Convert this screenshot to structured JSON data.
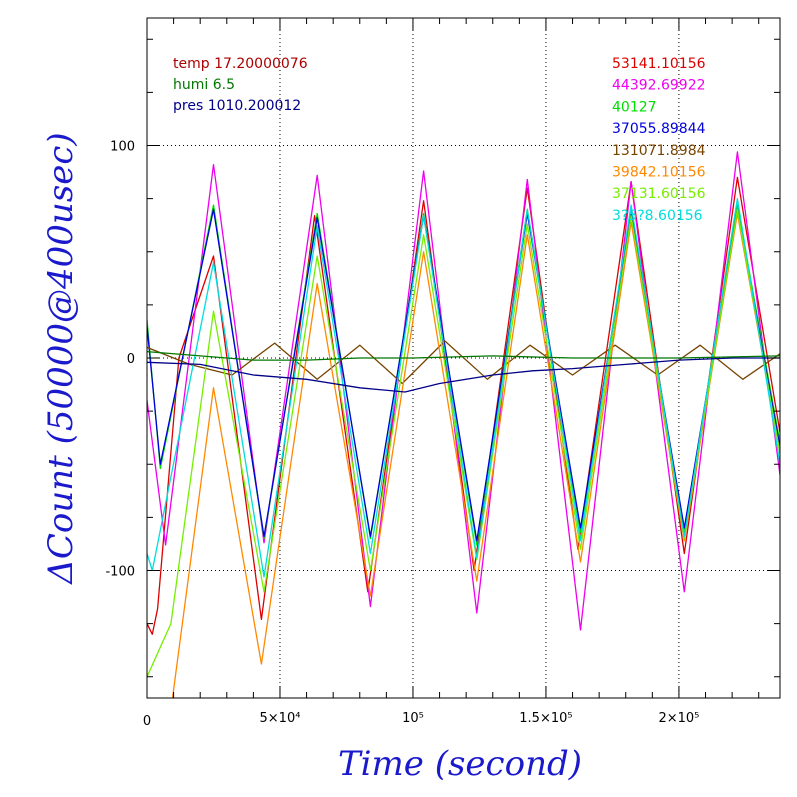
{
  "chart_data": {
    "type": "line",
    "xlabel": "Time (second)",
    "ylabel": "ΔCount (50000@400usec)",
    "xlim": [
      0,
      238000
    ],
    "ylim": [
      -160,
      160
    ],
    "x_ticks": [
      {
        "value": 0,
        "label": "0"
      },
      {
        "value": 50000,
        "label": "5×10⁴"
      },
      {
        "value": 100000,
        "label": "10⁵"
      },
      {
        "value": 150000,
        "label": "1.5×10⁵"
      },
      {
        "value": 200000,
        "label": "2×10⁵"
      }
    ],
    "y_ticks": [
      {
        "value": 100,
        "label": "100"
      },
      {
        "value": 0,
        "label": "0"
      },
      {
        "value": -100,
        "label": "-100"
      }
    ],
    "grid": true,
    "environment": [
      {
        "label": "temp 17.20000076",
        "color": "#aa0000"
      },
      {
        "label": "humi 6.5",
        "color": "#007700"
      },
      {
        "label": "pres 1010.200012",
        "color": "#000088"
      }
    ],
    "series": [
      {
        "name": "53141.10156",
        "color": "#dd0000",
        "x": [
          0,
          2000,
          4000,
          12000,
          25000,
          43000,
          63000,
          83000,
          104000,
          123000,
          143000,
          162000,
          182000,
          202000,
          222000,
          238000
        ],
        "y": [
          -125,
          -130,
          -118,
          0,
          48,
          -123,
          67,
          -110,
          74,
          -100,
          80,
          -90,
          83,
          -92,
          85,
          -35
        ]
      },
      {
        "name": "44392.69922",
        "color": "#ee00ee",
        "x": [
          0,
          7000,
          25000,
          44000,
          64000,
          84000,
          104000,
          124000,
          143000,
          163000,
          182000,
          202000,
          222000,
          238000
        ],
        "y": [
          -20,
          -88,
          91,
          -87,
          86,
          -117,
          88,
          -120,
          84,
          -128,
          83,
          -110,
          97,
          -55
        ]
      },
      {
        "name": "40127",
        "color": "#00dd00",
        "x": [
          0,
          5000,
          25000,
          44000,
          64000,
          84000,
          104000,
          124000,
          143000,
          163000,
          182000,
          202000,
          222000,
          238000
        ],
        "y": [
          18,
          -52,
          72,
          -85,
          68,
          -85,
          68,
          -88,
          70,
          -82,
          70,
          -82,
          72,
          -40
        ]
      },
      {
        "name": "37055.89844",
        "color": "#0000dd",
        "x": [
          0,
          5000,
          25000,
          44000,
          64000,
          84000,
          104000,
          124000,
          143000,
          163000,
          182000,
          202000,
          222000,
          238000
        ],
        "y": [
          15,
          -50,
          70,
          -84,
          66,
          -84,
          67,
          -86,
          68,
          -80,
          68,
          -80,
          70,
          -42
        ]
      },
      {
        "name": "131071.8984",
        "color": "#774400",
        "x": [
          0,
          16000,
          32000,
          48000,
          64000,
          80000,
          96000,
          112000,
          128000,
          144000,
          160000,
          176000,
          192000,
          208000,
          224000,
          238000
        ],
        "y": [
          5,
          -3,
          -8,
          7,
          -10,
          6,
          -12,
          8,
          -10,
          6,
          -8,
          6,
          -8,
          6,
          -10,
          2
        ]
      },
      {
        "name": "39842.10156",
        "color": "#ff8800",
        "x": [
          0,
          8000,
          25000,
          43000,
          64000,
          84000,
          104000,
          124000,
          143000,
          163000,
          182000,
          202000,
          222000,
          238000
        ],
        "y": [
          -200,
          -175,
          -14,
          -144,
          35,
          -112,
          50,
          -105,
          58,
          -96,
          64,
          -86,
          68,
          -45
        ]
      },
      {
        "name": "37131.60156",
        "color": "#77ee00",
        "x": [
          0,
          9000,
          25000,
          44000,
          64000,
          84000,
          104000,
          124000,
          143000,
          163000,
          182000,
          202000,
          222000,
          238000
        ],
        "y": [
          -150,
          -125,
          22,
          -110,
          48,
          -100,
          58,
          -95,
          63,
          -90,
          67,
          -85,
          70,
          -45
        ]
      },
      {
        "name": "3?5?8.60156",
        "color": "#00dddd",
        "x": [
          0,
          2000,
          25000,
          44000,
          64000,
          84000,
          104000,
          124000,
          143000,
          163000,
          182000,
          202000,
          222000,
          238000
        ],
        "y": [
          -92,
          -100,
          45,
          -103,
          62,
          -92,
          67,
          -94,
          70,
          -86,
          72,
          -84,
          75,
          -50
        ]
      },
      {
        "name": "",
        "color": "#000088",
        "x": [
          0,
          20000,
          40000,
          60000,
          80000,
          97000,
          110000,
          130000,
          145000,
          160000,
          180000,
          200000,
          220000,
          238000
        ],
        "y": [
          -2,
          -3,
          -8,
          -10,
          -14,
          -16,
          -12,
          -8,
          -6,
          -5,
          -3,
          -1,
          0,
          0
        ]
      },
      {
        "name": "",
        "color": "#007700",
        "x": [
          0,
          20000,
          40000,
          60000,
          80000,
          100000,
          130000,
          160000,
          200000,
          238000
        ],
        "y": [
          3,
          1,
          -1,
          -1,
          0,
          0,
          1,
          0,
          0,
          1
        ]
      }
    ]
  }
}
